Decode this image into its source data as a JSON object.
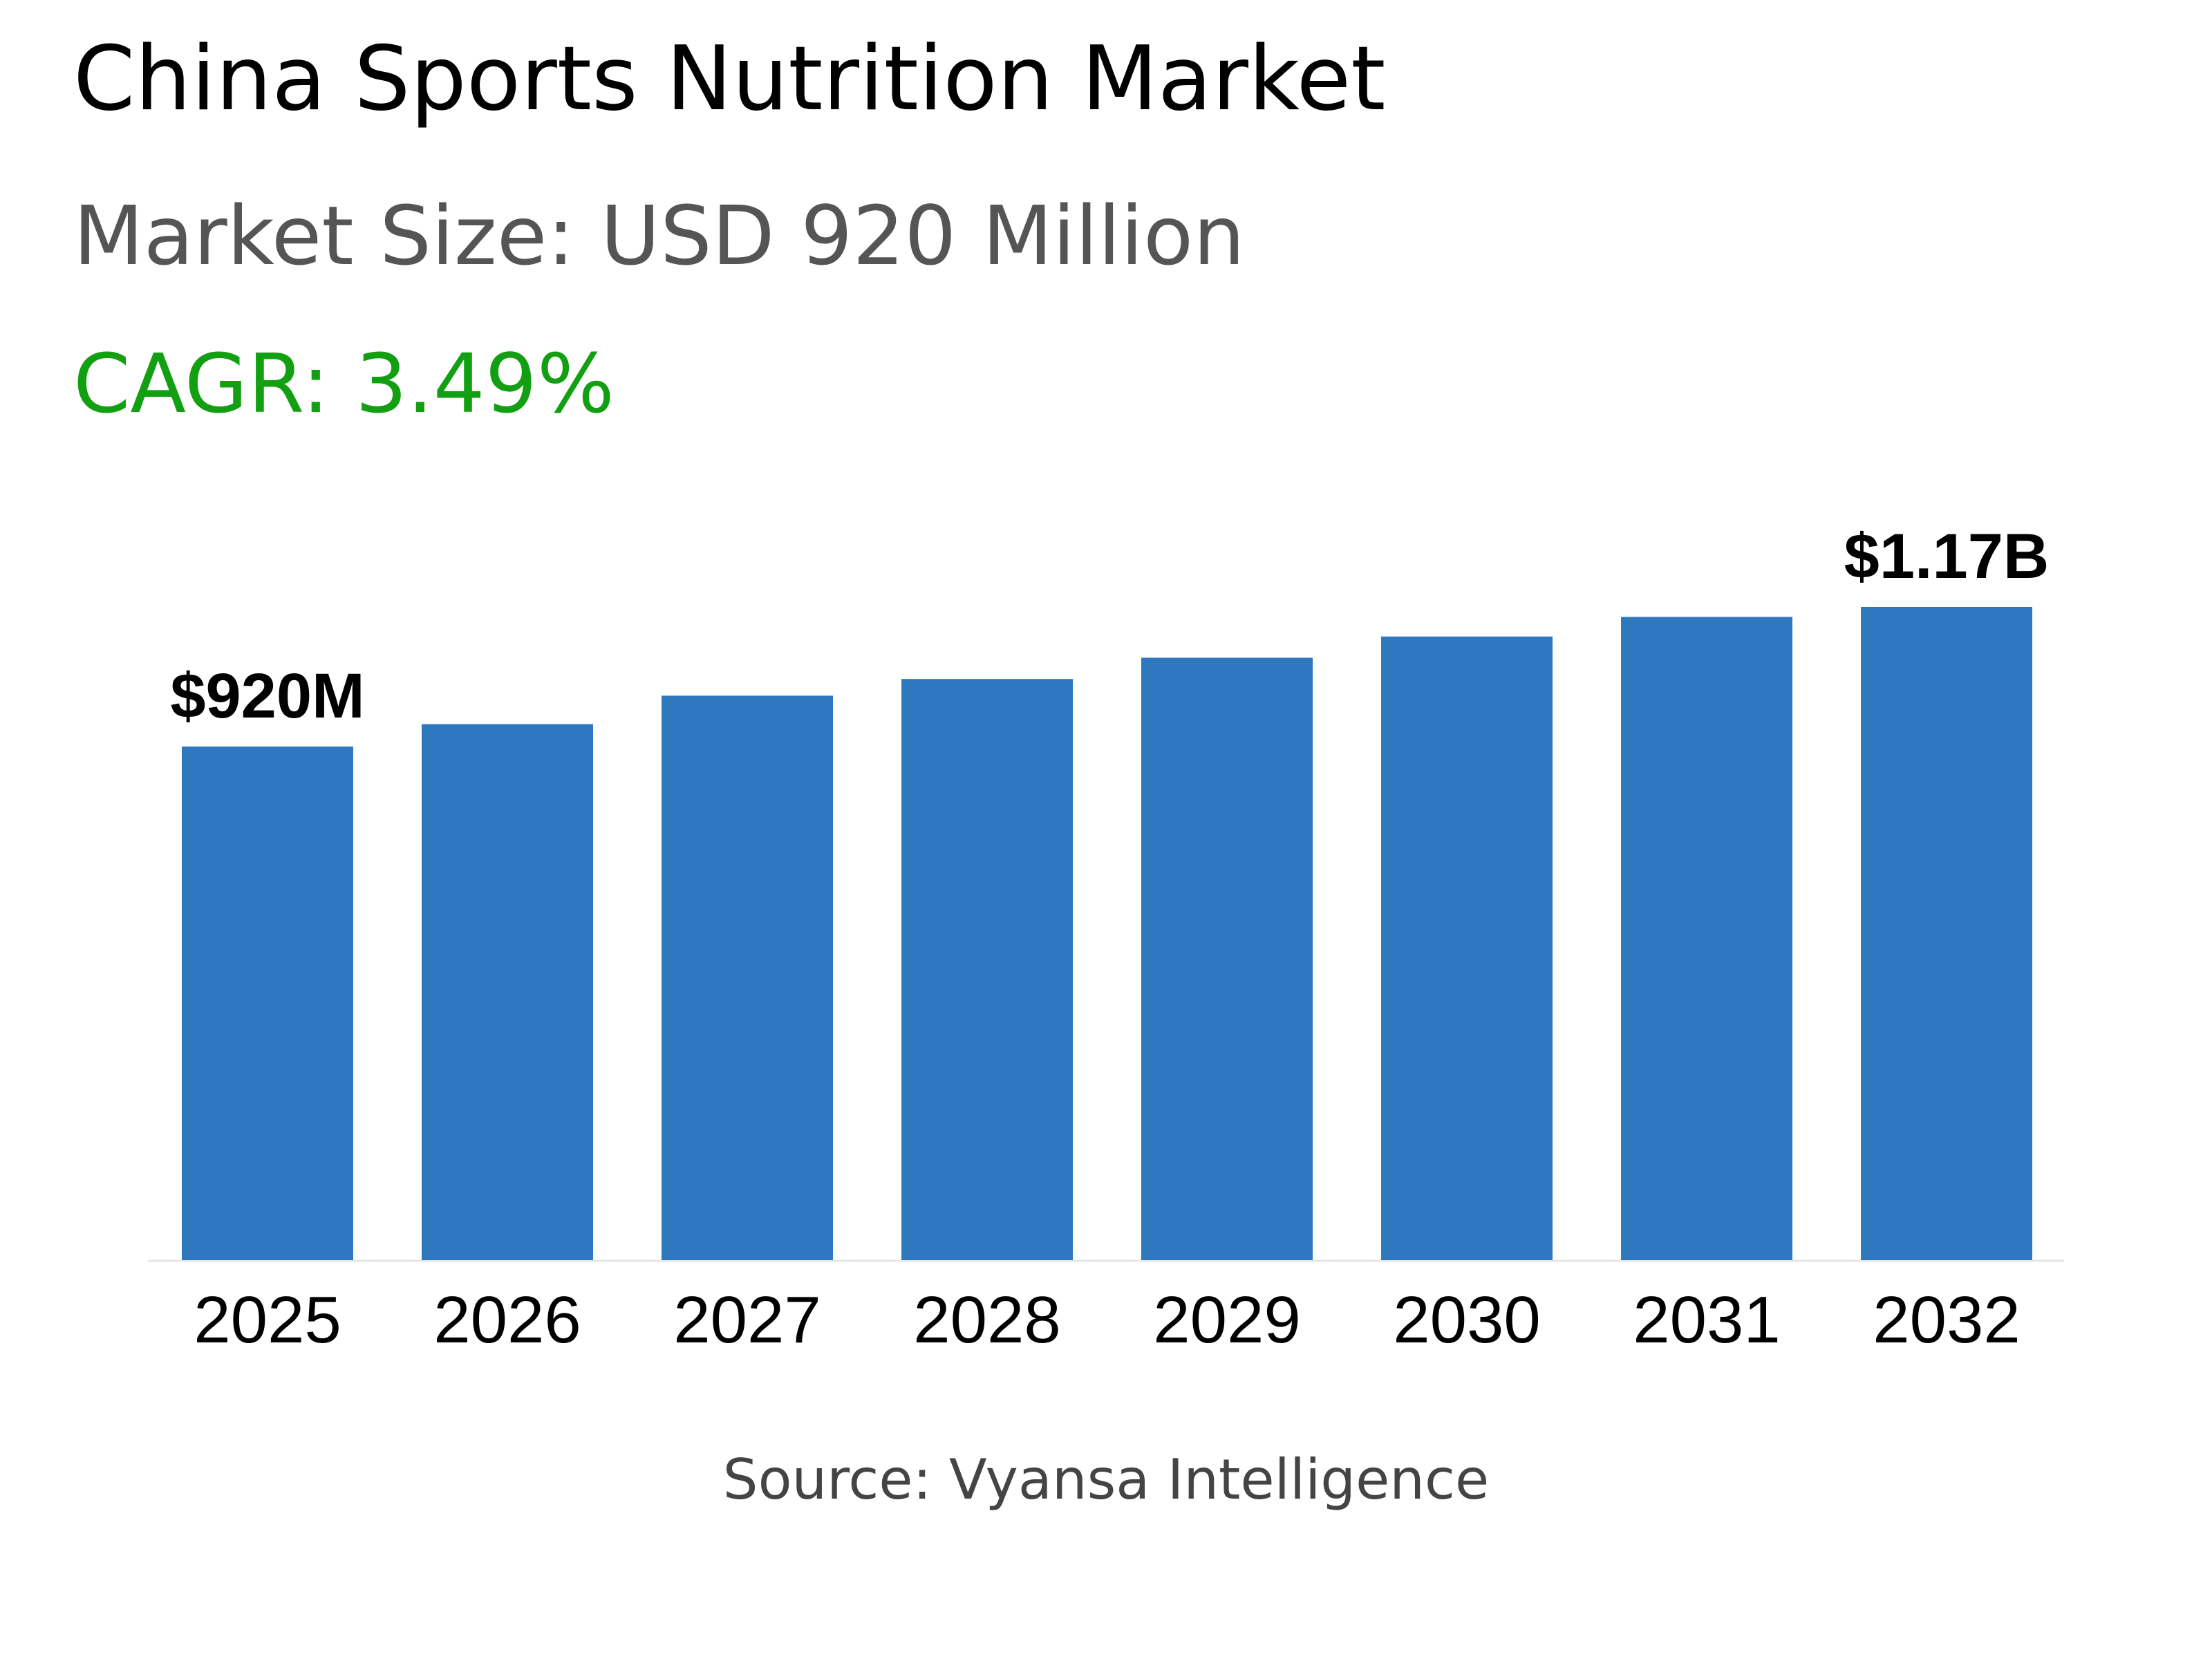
{
  "chart_data": {
    "type": "bar",
    "title": "China Sports Nutrition Market",
    "subtitle": "Market Size: USD 920 Million",
    "cagr": "CAGR: 3.49%",
    "source": "Source: Vyansa Intelligence",
    "categories": [
      "2025",
      "2026",
      "2027",
      "2028",
      "2029",
      "2030",
      "2031",
      "2032"
    ],
    "values": [
      920,
      960,
      1011,
      1041,
      1079,
      1117,
      1152,
      1170
    ],
    "value_labels": [
      "$920M",
      null,
      null,
      null,
      null,
      null,
      null,
      "$1.17B"
    ],
    "color": "#2e78bf"
  }
}
